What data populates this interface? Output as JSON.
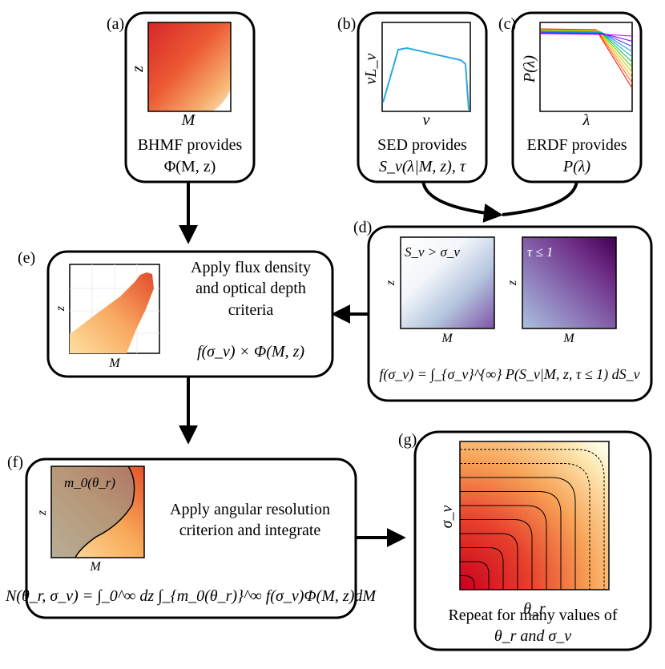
{
  "panels": {
    "a": {
      "tag": "(a)",
      "xlabel": "M",
      "ylabel": "z",
      "line1": "BHMF provides",
      "line2": "Φ(M, z)"
    },
    "b": {
      "tag": "(b)",
      "xlabel": "ν",
      "ylabel": "νL_ν",
      "line1": "SED provides",
      "line2": "S_ν(λ|M, z), τ"
    },
    "c": {
      "tag": "(c)",
      "xlabel": "λ",
      "ylabel": "P(λ)",
      "line1": "ERDF provides",
      "line2": "P(λ)"
    },
    "d": {
      "tag": "(d)",
      "left_label": "S_ν > σ_ν",
      "right_label": "τ ≤ 1",
      "xlabel": "M",
      "ylabel": "z",
      "formula": "f(σ_ν) = ∫_{σ_ν}^{∞} P(S_ν|M, z, τ ≤ 1) dS_ν"
    },
    "e": {
      "tag": "(e)",
      "xlabel": "M",
      "ylabel": "z",
      "line1": "Apply flux density",
      "line2": "and optical depth",
      "line3": "criteria",
      "formula": "f(σ_ν) × Φ(M, z)"
    },
    "f": {
      "tag": "(f)",
      "curve_label": "m_0(θ_r)",
      "xlabel": "M",
      "ylabel": "z",
      "line1": "Apply angular resolution",
      "line2": "criterion and integrate",
      "formula": "N(θ_r, σ_ν) = ∫_0^∞ dz ∫_{m_0(θ_r)}^∞ f(σ_ν)Φ(M, z)dM"
    },
    "g": {
      "tag": "(g)",
      "xlabel": "θ_r",
      "ylabel": "σ_ν",
      "line1": "Repeat for many values of",
      "line2": "θ_r and σ_ν"
    }
  },
  "colors": {
    "sed_line": "#29a8e0",
    "box_stroke": "#000000"
  }
}
